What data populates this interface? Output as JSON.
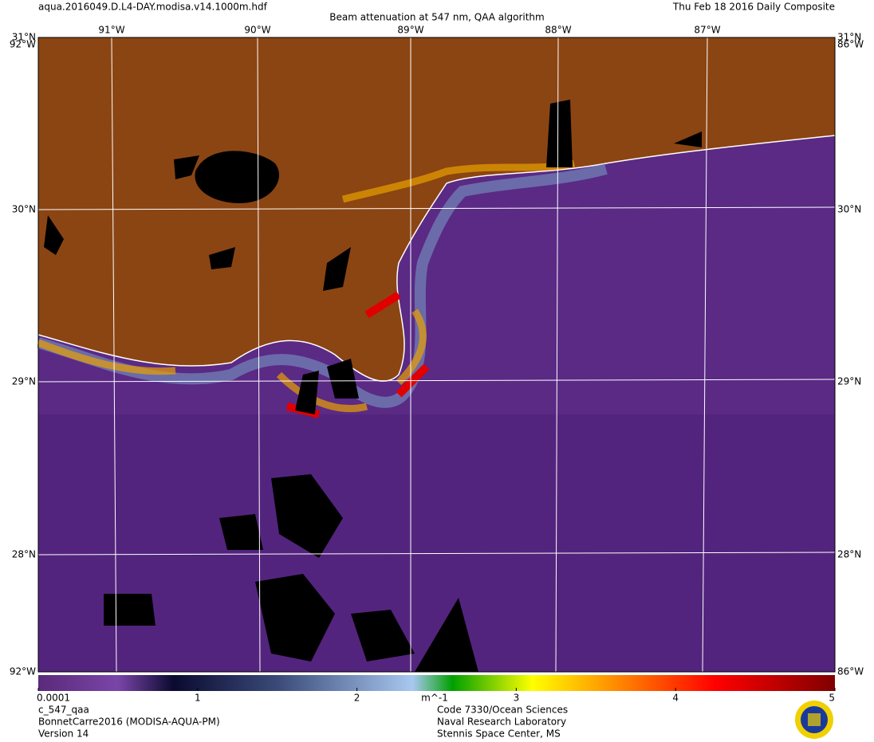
{
  "header": {
    "filename": "aqua.2016049.D.L4-DAY.modisa.v14.1000m.hdf",
    "title": "Beam attenuation at 547 nm, QAA algorithm",
    "date": "Thu Feb 18 2016 Daily Composite"
  },
  "map": {
    "lon_labels": [
      "91°W",
      "90°W",
      "89°W",
      "88°W",
      "87°W"
    ],
    "lat_labels": [
      "31°N",
      "30°N",
      "29°N",
      "28°N"
    ],
    "corner_labels": [
      "92°W",
      "86°W"
    ]
  },
  "colorbar": {
    "ticks": [
      0.0001,
      1,
      2,
      3,
      4,
      5
    ],
    "unit": "m^-1"
  },
  "footer": {
    "left": [
      "c_547_qaa",
      "BonnetCarre2016 (MODISA-AQUA-PM)",
      "Version 14"
    ],
    "right": [
      "Code 7330/Ocean Sciences",
      "Naval Research Laboratory",
      "Stennis Space Center, MS"
    ]
  }
}
